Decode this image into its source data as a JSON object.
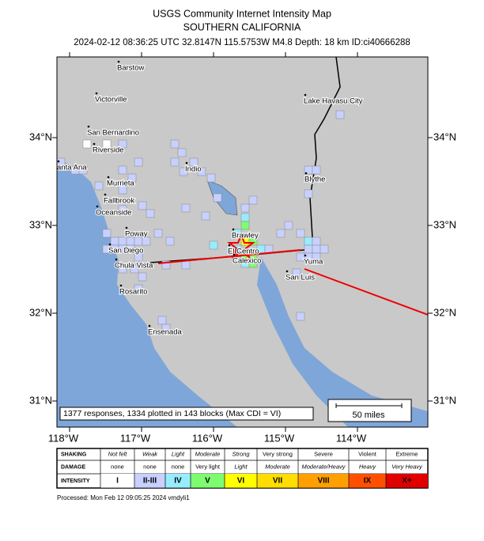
{
  "header": {
    "title": "USGS Community Internet Intensity Map",
    "subtitle": "SOUTHERN CALIFORNIA",
    "info": "2024-02-12 08:36:25 UTC 32.8147N 115.5753W M4.8 Depth: 18 km ID:ci40666288"
  },
  "map": {
    "lat_labels": [
      "34°N",
      "33°N",
      "32°N",
      "31°N"
    ],
    "lon_labels": [
      "118°W",
      "117°W",
      "116°W",
      "115°W",
      "114°W"
    ],
    "cities": [
      "Barstow",
      "Victorville",
      "San Bernardino",
      "Riverside",
      "anta Ana",
      "Indio",
      "Murrieta",
      "Fallbrook",
      "Oceanside",
      "Poway",
      "San Diego",
      "Chula Vista",
      "Rosarito",
      "Ensenada",
      "Brawley",
      "El Centro",
      "Calexico",
      "Yuma",
      "San Luis",
      "Blythe",
      "Lake Havasu City"
    ],
    "responses_note": "1377 responses, 1334 plotted in 143 blocks (Max CDI = VI)",
    "scale_label": "50 miles"
  },
  "legend": {
    "row_labels": [
      "SHAKING",
      "DAMAGE",
      "INTENSITY"
    ],
    "shaking": [
      "Not felt",
      "Weak",
      "Light",
      "Moderate",
      "Strong",
      "Very strong",
      "Severe",
      "Violent",
      "Extreme"
    ],
    "damage": [
      "none",
      "none",
      "none",
      "Very light",
      "Light",
      "Moderate",
      "Moderate/Heavy",
      "Heavy",
      "Very Heavy"
    ],
    "intensity": [
      "I",
      "II-III",
      "IV",
      "V",
      "VI",
      "VII",
      "VIII",
      "IX",
      "X+"
    ],
    "colors": [
      "#ffffff",
      "#c8d0ff",
      "#98ecff",
      "#7efc70",
      "#ffff00",
      "#ffdd00",
      "#ffa000",
      "#ff5000",
      "#e00000"
    ]
  },
  "footer": {
    "processed": "Processed: Mon Feb 12 09:05:25 2024 vmdyli1"
  }
}
